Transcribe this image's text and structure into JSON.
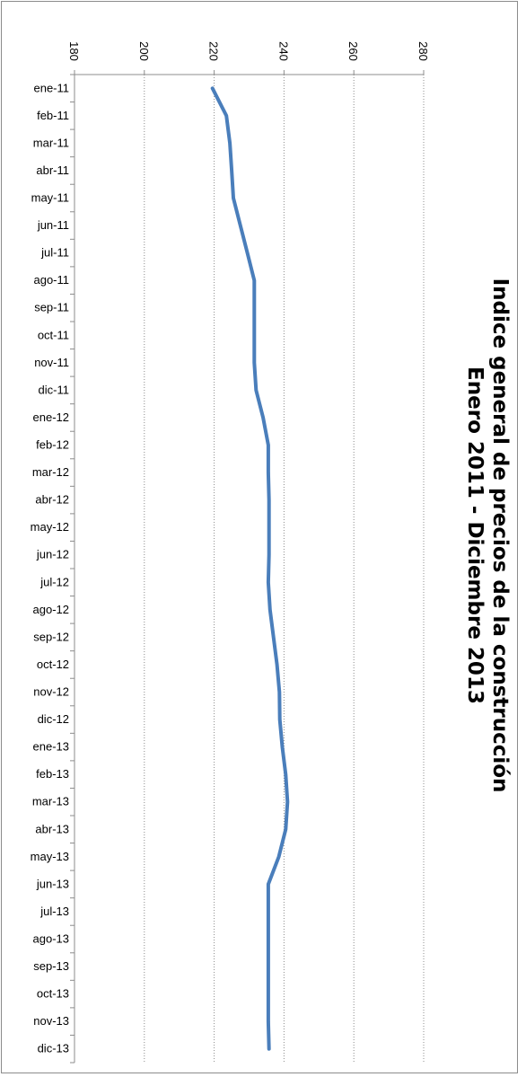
{
  "chart_data": {
    "type": "line",
    "title": "Indice general de precios de la construcción",
    "subtitle": "Enero 2011 - Diciembre 2013",
    "xlabel": "",
    "ylabel": "",
    "orientation": "rotated 90 degrees clockwise (categories run top to bottom, values left to right)",
    "ylim": [
      180,
      280
    ],
    "yticks": [
      "180",
      "200",
      "220",
      "240",
      "260",
      "280"
    ],
    "grid": "dotted vertical gridlines",
    "legend": "none",
    "categories": [
      "ene-11",
      "feb-11",
      "mar-11",
      "abr-11",
      "may-11",
      "jun-11",
      "jul-11",
      "ago-11",
      "sep-11",
      "oct-11",
      "nov-11",
      "dic-11",
      "ene-12",
      "feb-12",
      "mar-12",
      "abr-12",
      "may-12",
      "jun-12",
      "jul-12",
      "ago-12",
      "sep-12",
      "oct-12",
      "nov-12",
      "dic-12",
      "ene-13",
      "feb-13",
      "mar-13",
      "abr-13",
      "may-13",
      "jun-13",
      "jul-13",
      "ago-13",
      "sep-13",
      "oct-13",
      "nov-13",
      "dic-13"
    ],
    "series": [
      {
        "color": "#4a7ebb",
        "values": [
          219.5,
          223.5,
          224.5,
          225.0,
          225.5,
          227.5,
          229.5,
          231.5,
          231.5,
          231.5,
          231.5,
          232.0,
          234.0,
          235.5,
          235.5,
          235.7,
          235.7,
          235.7,
          235.5,
          236.0,
          237.0,
          238.0,
          238.7,
          238.8,
          239.5,
          240.5,
          241.0,
          240.5,
          238.5,
          235.5,
          235.5,
          235.5,
          235.5,
          235.5,
          235.5,
          235.7
        ]
      }
    ]
  }
}
